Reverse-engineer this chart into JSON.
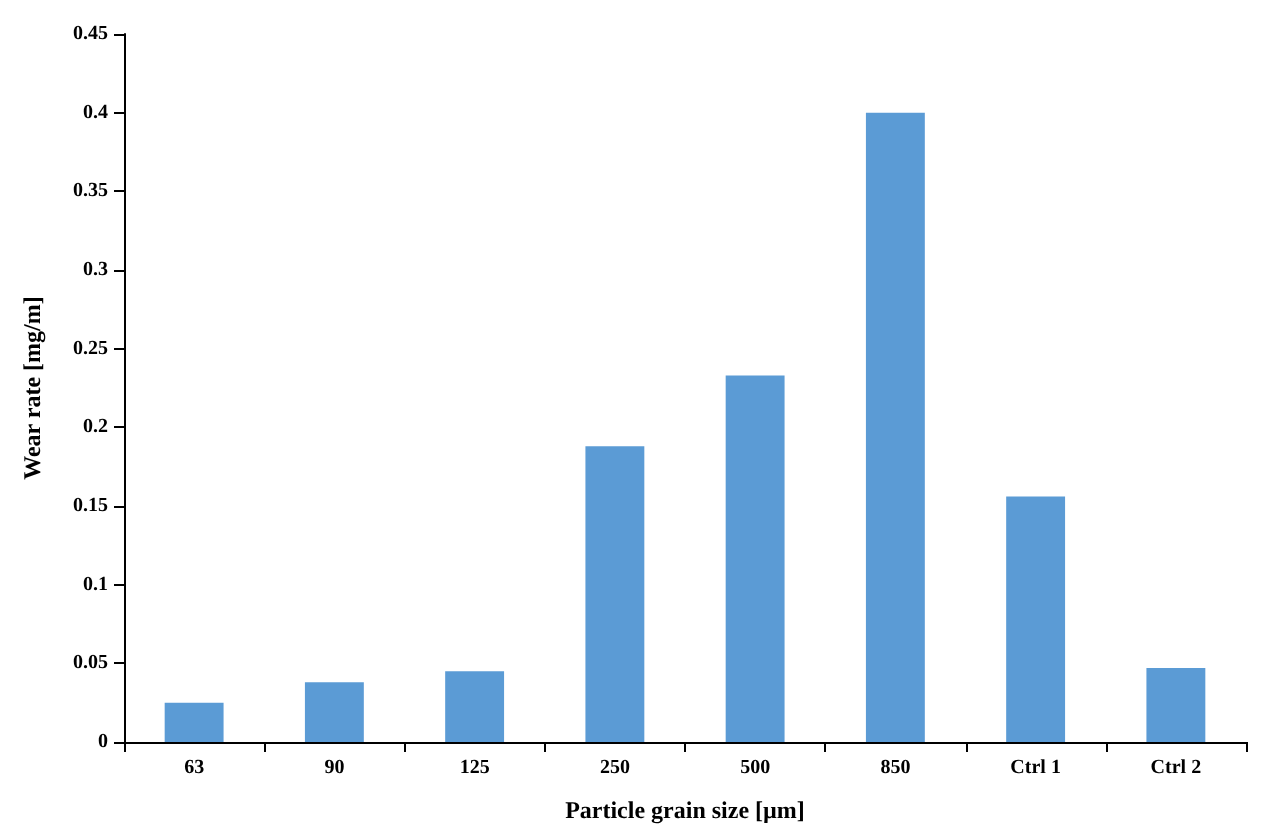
{
  "chart_data": {
    "type": "bar",
    "xlabel": "Particle grain size [µm]",
    "ylabel": "Wear rate [mg/m]",
    "categories": [
      "63",
      "90",
      "125",
      "250",
      "500",
      "850",
      "Ctrl 1",
      "Ctrl 2"
    ],
    "values": [
      0.025,
      0.038,
      0.045,
      0.188,
      0.233,
      0.4,
      0.156,
      0.047
    ],
    "color": "#5b9bd5",
    "ylim": [
      0,
      0.45
    ],
    "yticks": [
      0,
      0.05,
      0.1,
      0.15,
      0.2,
      0.25,
      0.3,
      0.35,
      0.4,
      0.45
    ],
    "grid": false
  }
}
